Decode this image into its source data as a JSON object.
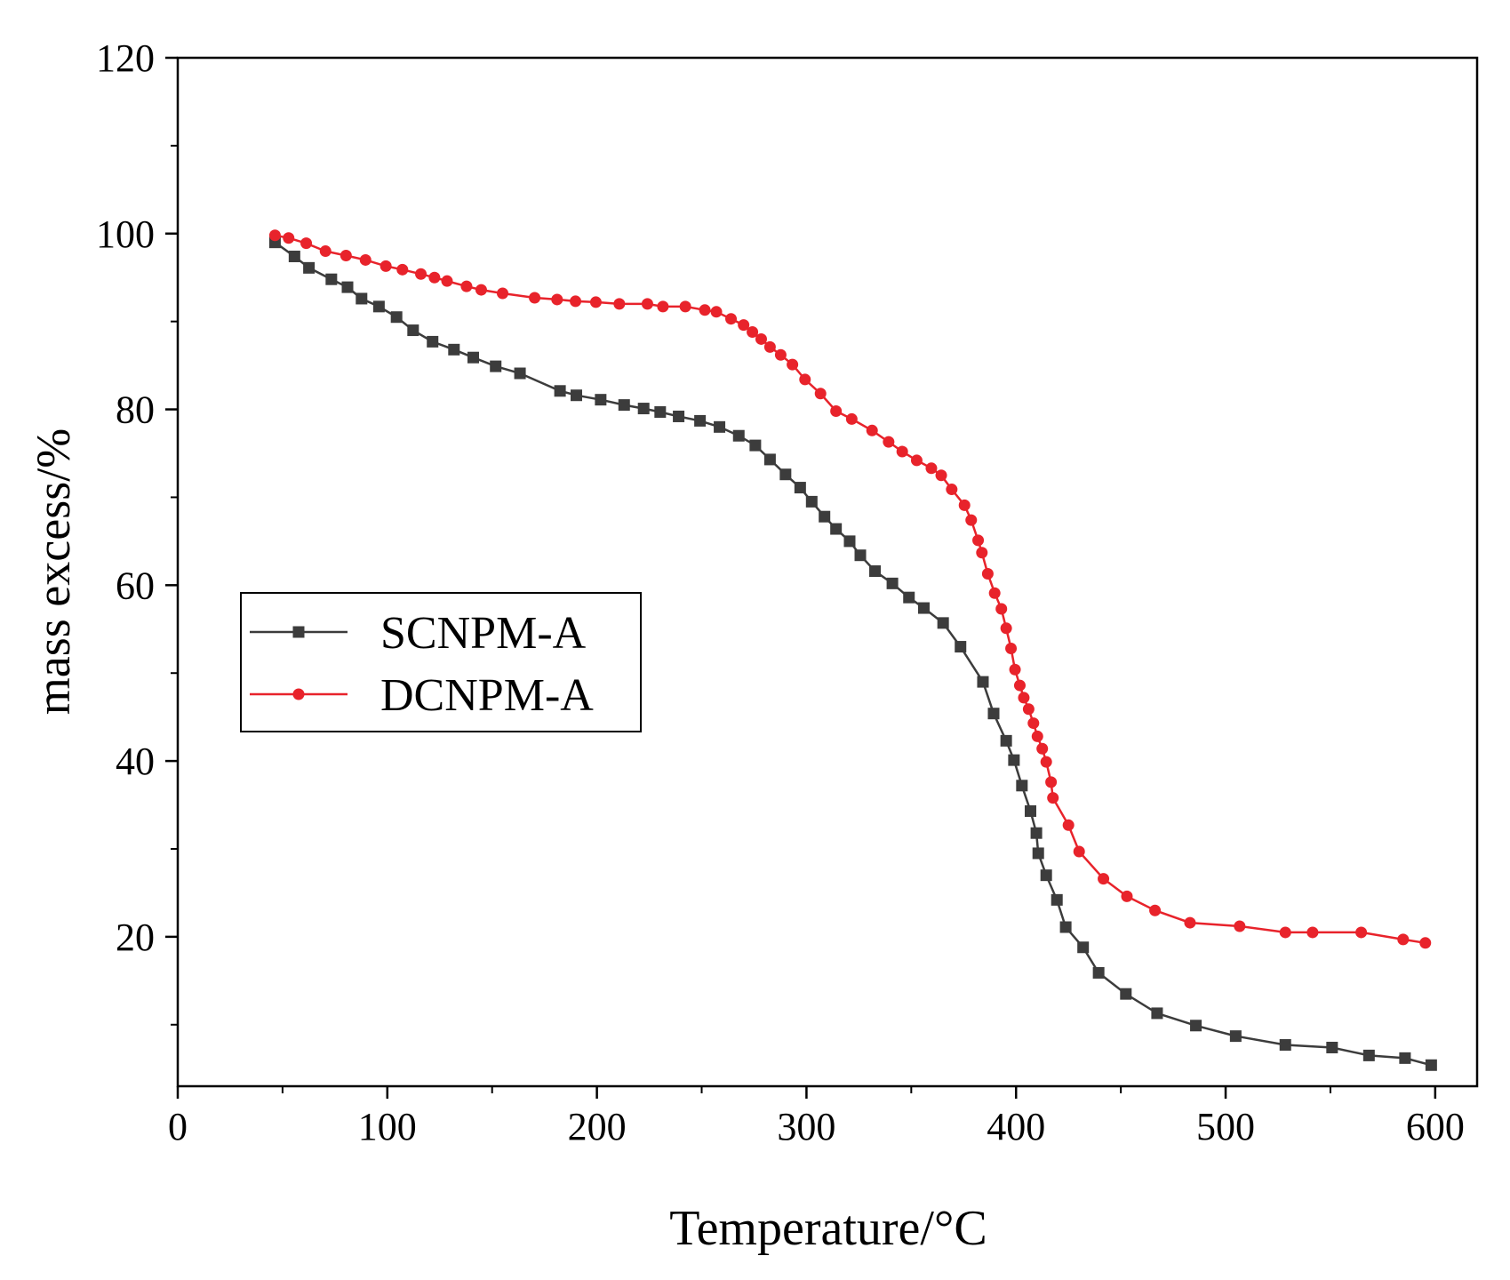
{
  "chart_data": {
    "type": "line",
    "xlabel": "Temperature/°C",
    "ylabel": "mass excess/%",
    "xlim": [
      0,
      620
    ],
    "ylim": [
      3,
      120
    ],
    "xticks": [
      0,
      100,
      200,
      300,
      400,
      500,
      600
    ],
    "yticks": [
      20,
      40,
      60,
      80,
      100,
      120
    ],
    "xminorticks": [
      50,
      150,
      250,
      350,
      450,
      550
    ],
    "yminorticks": [
      10,
      30,
      50,
      70,
      90,
      110
    ],
    "legend": "center left",
    "series": [
      {
        "name": "SCNPM-A",
        "color": "#3c3c3c",
        "marker": "square",
        "x": [
          46.4,
          55.7,
          62.6,
          73.3,
          81,
          87.7,
          96,
          104.4,
          112.3,
          121.6,
          131.8,
          141,
          151.7,
          163.3,
          182.4,
          190.2,
          201.8,
          213,
          222.3,
          230.2,
          239,
          249.2,
          258.5,
          267.7,
          275.6,
          282.6,
          290,
          297,
          302.5,
          308.6,
          314.1,
          320.6,
          325.7,
          332.7,
          341,
          348.9,
          356,
          365.2,
          373.5,
          384.2,
          389.3,
          395.3,
          399,
          402.8,
          406.9,
          409.7,
          410.6,
          414.4,
          419.5,
          423.7,
          432,
          439.4,
          452.4,
          467.3,
          485.8,
          504.8,
          528.5,
          550.8,
          568.4,
          585.6,
          598.1
        ],
        "values": [
          99,
          97.4,
          96.1,
          94.8,
          93.9,
          92.6,
          91.7,
          90.5,
          89,
          87.7,
          86.8,
          85.9,
          84.9,
          84.1,
          82.1,
          81.6,
          81.1,
          80.5,
          80.1,
          79.7,
          79.2,
          78.7,
          78,
          77,
          75.9,
          74.3,
          72.6,
          71.1,
          69.5,
          67.8,
          66.4,
          65,
          63.4,
          61.6,
          60.2,
          58.6,
          57.4,
          55.7,
          53,
          49,
          45.4,
          42.3,
          40.1,
          37.2,
          34.3,
          31.8,
          29.5,
          27,
          24.2,
          21.1,
          18.8,
          15.9,
          13.5,
          11.3,
          9.9,
          8.7,
          7.7,
          7.4,
          6.5,
          6.2,
          5.4
        ]
      },
      {
        "name": "DCNPM-A",
        "color": "#e8232b",
        "marker": "circle",
        "x": [
          46.4,
          52.9,
          61.3,
          70.5,
          80.3,
          89.6,
          99.3,
          107.2,
          116,
          122.5,
          128.5,
          137.8,
          144.8,
          155,
          170.3,
          181,
          189.8,
          199.5,
          210.7,
          224.1,
          231.5,
          242.2,
          251.5,
          257,
          264,
          270,
          274.2,
          278.4,
          282.6,
          287.7,
          293.3,
          299.3,
          306.7,
          314.1,
          321.6,
          331.3,
          339.2,
          345.7,
          352.6,
          359.6,
          364.3,
          369.3,
          375.4,
          378.6,
          381.9,
          383.7,
          386.5,
          389.8,
          393,
          395.3,
          397.6,
          399.5,
          401.8,
          403.7,
          406,
          408.3,
          410.2,
          412.5,
          414.4,
          416.7,
          417.6,
          425,
          430.1,
          441.7,
          452.9,
          466.3,
          483,
          506.7,
          528.5,
          541.5,
          564.7,
          584.7,
          595.3
        ],
        "values": [
          99.8,
          99.5,
          98.9,
          98,
          97.5,
          97,
          96.3,
          95.9,
          95.4,
          95,
          94.6,
          94,
          93.6,
          93.2,
          92.7,
          92.5,
          92.3,
          92.2,
          92,
          92,
          91.7,
          91.7,
          91.3,
          91.1,
          90.3,
          89.6,
          88.8,
          88,
          87.1,
          86.2,
          85.1,
          83.4,
          81.8,
          79.8,
          78.9,
          77.6,
          76.3,
          75.2,
          74.2,
          73.3,
          72.5,
          70.9,
          69.1,
          67.4,
          65.1,
          63.7,
          61.3,
          59.1,
          57.3,
          55.1,
          52.8,
          50.4,
          48.6,
          47.2,
          45.9,
          44.3,
          42.8,
          41.4,
          39.9,
          37.6,
          35.8,
          32.7,
          29.7,
          26.6,
          24.6,
          23,
          21.6,
          21.2,
          20.5,
          20.5,
          20.5,
          19.7,
          19.3
        ]
      }
    ]
  }
}
